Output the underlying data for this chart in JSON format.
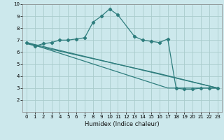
{
  "title": "",
  "xlabel": "Humidex (Indice chaleur)",
  "xlim": [
    -0.5,
    23.5
  ],
  "ylim": [
    1,
    10
  ],
  "yticks": [
    2,
    3,
    4,
    5,
    6,
    7,
    8,
    9,
    10
  ],
  "xticks": [
    0,
    1,
    2,
    3,
    4,
    5,
    6,
    7,
    8,
    9,
    10,
    11,
    12,
    13,
    14,
    15,
    16,
    17,
    18,
    19,
    20,
    21,
    22,
    23
  ],
  "bg_color": "#cce8ec",
  "grid_color": "#aacccc",
  "line_color": "#2e7d7d",
  "line1_x": [
    0,
    1,
    2,
    3,
    4,
    5,
    6,
    7,
    8,
    9,
    10,
    11,
    13,
    14,
    15,
    16,
    17,
    18,
    19,
    20,
    21,
    22,
    23
  ],
  "line1_y": [
    6.8,
    6.5,
    6.7,
    6.8,
    7.0,
    7.0,
    7.1,
    7.2,
    8.5,
    9.0,
    9.6,
    9.1,
    7.3,
    7.0,
    6.9,
    6.8,
    7.1,
    3.0,
    2.9,
    2.9,
    3.0,
    3.0,
    3.0
  ],
  "line2_x": [
    0,
    23
  ],
  "line2_y": [
    6.8,
    3.0
  ],
  "line3_x": [
    0,
    17,
    23
  ],
  "line3_y": [
    6.8,
    3.0,
    3.0
  ],
  "line4_x": [
    0,
    16,
    23
  ],
  "line4_y": [
    6.7,
    4.2,
    3.0
  ]
}
